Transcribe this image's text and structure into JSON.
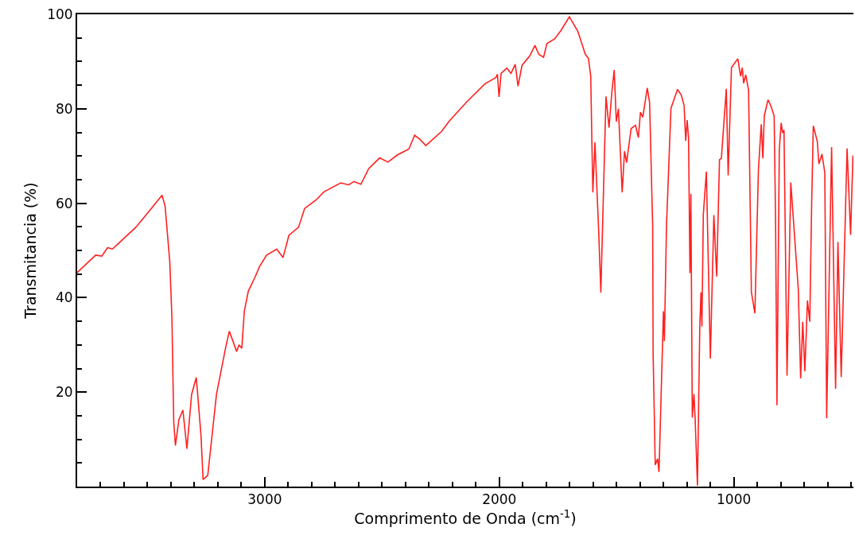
{
  "chart_data": {
    "type": "line",
    "xlabel": "Comprimento de Onda (cm$^{-1}$)",
    "ylabel": "Transmitancia (%)",
    "xlim": [
      3800,
      490
    ],
    "ylim": [
      0,
      100
    ],
    "xticks": [
      {
        "value": 3800,
        "label": null
      },
      {
        "value": 3700,
        "label": null
      },
      {
        "value": 3600,
        "label": null
      },
      {
        "value": 3500,
        "label": null
      },
      {
        "value": 3400,
        "label": null
      },
      {
        "value": 3300,
        "label": null
      },
      {
        "value": 3200,
        "label": null
      },
      {
        "value": 3100,
        "label": null
      },
      3000,
      {
        "value": 2900,
        "label": null
      },
      {
        "value": 2800,
        "label": null
      },
      {
        "value": 2700,
        "label": null
      },
      {
        "value": 2600,
        "label": null
      },
      {
        "value": 2500,
        "label": null
      },
      {
        "value": 2400,
        "label": null
      },
      {
        "value": 2300,
        "label": null
      },
      {
        "value": 2200,
        "label": null
      },
      {
        "value": 2100,
        "label": null
      },
      2000,
      {
        "value": 1900,
        "label": null
      },
      {
        "value": 1800,
        "label": null
      },
      {
        "value": 1700,
        "label": null
      },
      {
        "value": 1600,
        "label": null
      },
      {
        "value": 1500,
        "label": null
      },
      {
        "value": 1400,
        "label": null
      },
      {
        "value": 1300,
        "label": null
      },
      {
        "value": 1200,
        "label": null
      },
      {
        "value": 1100,
        "label": null
      },
      1000,
      {
        "value": 900,
        "label": null
      },
      {
        "value": 800,
        "label": null
      },
      {
        "value": 700,
        "label": null
      },
      {
        "value": 600,
        "label": null
      },
      {
        "value": 500,
        "label": null
      }
    ],
    "yticks": [
      {
        "value": 5,
        "label": null
      },
      {
        "value": 10,
        "label": null
      },
      {
        "value": 15,
        "label": null
      },
      20,
      {
        "value": 25,
        "label": null
      },
      {
        "value": 30,
        "label": null
      },
      {
        "value": 35,
        "label": null
      },
      40,
      {
        "value": 45,
        "label": null
      },
      {
        "value": 50,
        "label": null
      },
      {
        "value": 55,
        "label": null
      },
      60,
      {
        "value": 65,
        "label": null
      },
      {
        "value": 70,
        "label": null
      },
      {
        "value": 75,
        "label": null
      },
      80,
      {
        "value": 85,
        "label": null
      },
      {
        "value": 90,
        "label": null
      },
      {
        "value": 95,
        "label": null
      },
      100
    ],
    "marker": "none",
    "line_style": "solid",
    "series": [
      {
        "color": "#ff2020",
        "x": [
          3800,
          3721,
          3695,
          3670,
          3650,
          3630,
          3550,
          3485,
          3438,
          3425,
          3405,
          3396,
          3388,
          3381,
          3366,
          3349,
          3332,
          3312,
          3292,
          3272,
          3263,
          3243,
          3206,
          3166,
          3151,
          3120,
          3110,
          3098,
          3087,
          3070,
          3041,
          3022,
          2992,
          2949,
          2922,
          2897,
          2856,
          2830,
          2781,
          2748,
          2676,
          2642,
          2620,
          2590,
          2557,
          2510,
          2475,
          2435,
          2385,
          2361,
          2338,
          2313,
          2246,
          2213,
          2140,
          2061,
          2015,
          2008,
          2001,
          1992,
          1968,
          1950,
          1932,
          1920,
          1903,
          1870,
          1848,
          1831,
          1811,
          1797,
          1764,
          1738,
          1701,
          1685,
          1666,
          1646,
          1633,
          1620,
          1610,
          1605,
          1601,
          1592,
          1576,
          1567,
          1545,
          1532,
          1520,
          1510,
          1501,
          1492,
          1476,
          1466,
          1457,
          1438,
          1419,
          1407,
          1398,
          1388,
          1369,
          1359,
          1346,
          1344,
          1335,
          1325,
          1319,
          1300,
          1296,
          1287,
          1268,
          1240,
          1224,
          1212,
          1205,
          1199,
          1193,
          1187,
          1183,
          1177,
          1170,
          1165,
          1155,
          1145,
          1140,
          1136,
          1130,
          1117,
          1100,
          1085,
          1073,
          1061,
          1053,
          1032,
          1024,
          1010,
          983,
          971,
          964,
          958,
          949,
          937,
          925,
          910,
          895,
          883,
          876,
          870,
          854,
          842,
          828,
          822,
          816,
          806,
          798,
          792,
          786,
          773,
          757,
          725,
          715,
          706,
          697,
          686,
          676,
          668,
          661,
          644,
          637,
          624,
          612,
          604,
          583,
          566,
          556,
          542,
          517,
          502,
          492
        ],
        "values": [
          45.3,
          49.0,
          48.8,
          50.6,
          50.3,
          51.2,
          54.9,
          58.8,
          61.7,
          59.4,
          47.6,
          35.9,
          13.6,
          8.7,
          14.2,
          16.2,
          8.0,
          19.5,
          23.1,
          10.9,
          1.5,
          2.4,
          19.5,
          29.6,
          32.9,
          28.6,
          30.0,
          29.3,
          37.2,
          41.4,
          44.4,
          46.6,
          49.0,
          50.3,
          48.5,
          53.2,
          54.9,
          58.9,
          60.7,
          62.4,
          64.3,
          63.9,
          64.6,
          64.0,
          67.3,
          69.6,
          68.7,
          70.2,
          71.5,
          74.4,
          73.5,
          72.2,
          75.2,
          77.4,
          81.4,
          85.3,
          86.6,
          87.3,
          82.5,
          87.5,
          88.6,
          87.5,
          89.4,
          84.8,
          89.2,
          91.2,
          93.4,
          91.5,
          90.9,
          93.8,
          94.8,
          96.5,
          99.5,
          98.1,
          96.5,
          93.5,
          91.5,
          90.7,
          86.9,
          72.6,
          62.3,
          72.9,
          53.9,
          41.1,
          82.6,
          76.0,
          83.5,
          88.2,
          77.3,
          80.0,
          62.3,
          71.0,
          68.6,
          75.8,
          76.5,
          73.9,
          79.3,
          78.2,
          84.4,
          81.3,
          55.2,
          28.0,
          4.6,
          5.9,
          3.1,
          37.1,
          30.8,
          55.2,
          80.1,
          84.1,
          82.9,
          80.7,
          73.2,
          77.6,
          73.9,
          45.2,
          62.0,
          14.6,
          19.6,
          14.6,
          0.2,
          33.9,
          41.1,
          33.9,
          57.6,
          66.7,
          27.1,
          57.5,
          44.5,
          69.2,
          69.5,
          84.2,
          65.9,
          88.7,
          90.6,
          86.9,
          88.7,
          85.4,
          87.2,
          83.9,
          41.2,
          36.7,
          67.1,
          76.7,
          69.5,
          78.5,
          81.9,
          80.6,
          78.5,
          56.9,
          17.2,
          71.3,
          77.0,
          74.9,
          75.5,
          23.5,
          64.4,
          41.8,
          22.9,
          34.9,
          24.4,
          39.4,
          34.9,
          59.9,
          76.4,
          73.1,
          68.3,
          70.4,
          66.5,
          14.5,
          71.9,
          20.7,
          51.8,
          23.2,
          71.6,
          53.3,
          70.1
        ]
      }
    ]
  }
}
